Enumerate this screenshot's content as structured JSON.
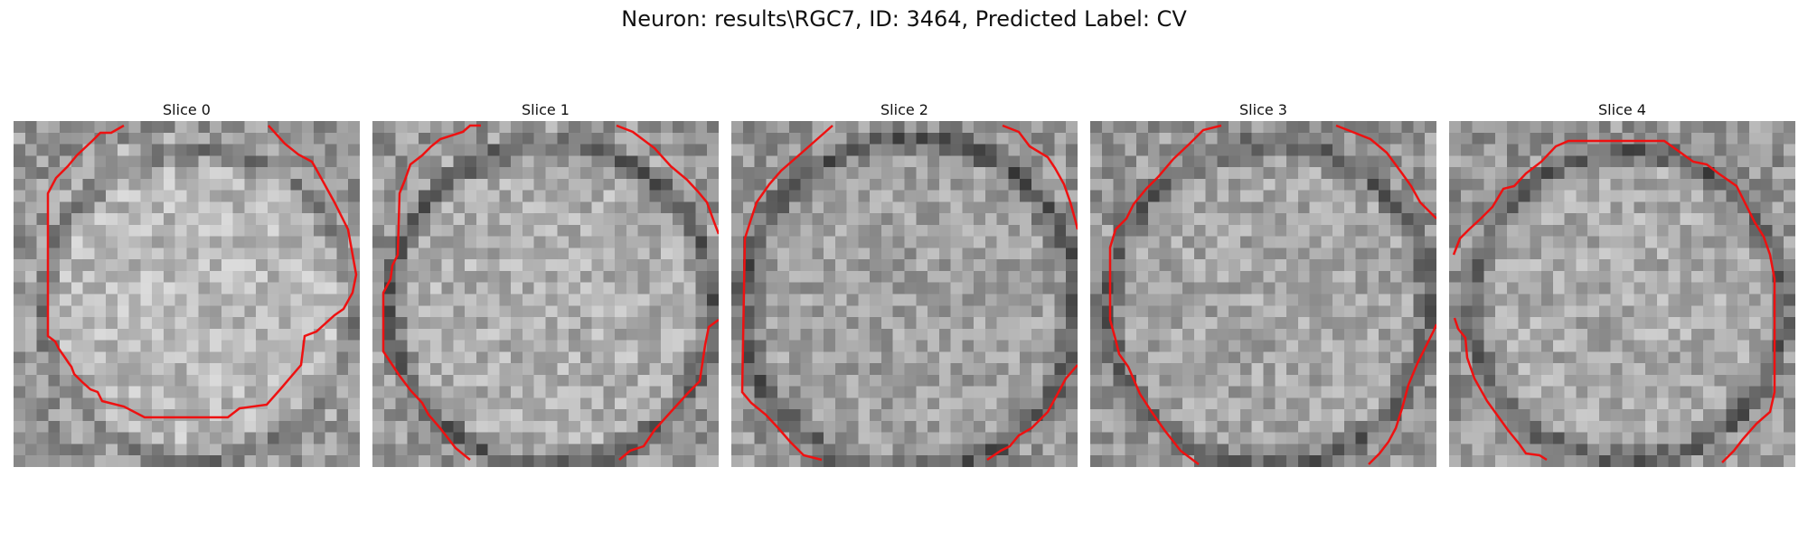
{
  "figure": {
    "title": "Neuron: results\\RGC7, ID: 3464, Predicted Label: CV"
  },
  "slices": [
    {
      "label": "Slice 0"
    },
    {
      "label": "Slice 1"
    },
    {
      "label": "Slice 2"
    },
    {
      "label": "Slice 3"
    },
    {
      "label": "Slice 4"
    }
  ],
  "colors": {
    "contour": "#ee1111",
    "background": "#ffffff"
  }
}
